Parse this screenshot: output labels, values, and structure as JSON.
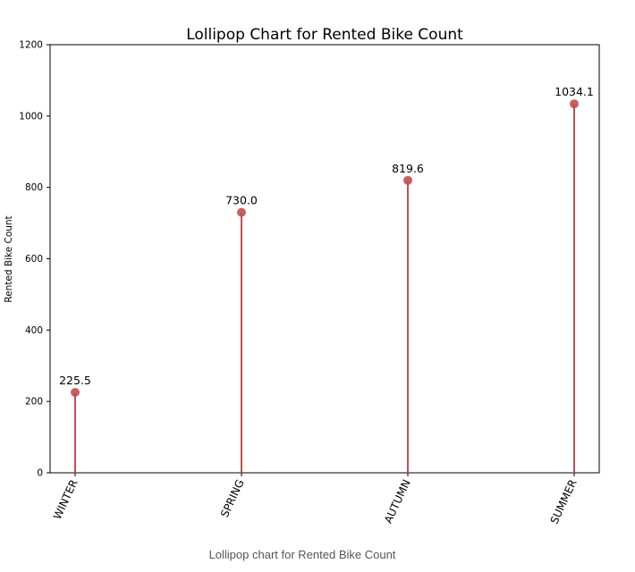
{
  "caption": "Lollipop chart for Rented Bike Count",
  "chart_data": {
    "type": "lollipop",
    "title": "Lollipop Chart for Rented Bike Count",
    "xlabel": "",
    "ylabel": "Rented Bike Count",
    "categories": [
      "WINTER",
      "SPRING",
      "AUTUMN",
      "SUMMER"
    ],
    "values": [
      225.5,
      730.0,
      819.6,
      1034.1
    ],
    "data_labels": [
      "225.5",
      "730.0",
      "819.6",
      "1034.1"
    ],
    "ylim": [
      0,
      1200
    ],
    "yticks": [
      0,
      200,
      400,
      600,
      800,
      1000,
      1200
    ],
    "grid": false,
    "legend": "none",
    "x_tick_rotation": 65,
    "colors": {
      "stem": "#c44e52",
      "marker": "#c44e52"
    }
  }
}
